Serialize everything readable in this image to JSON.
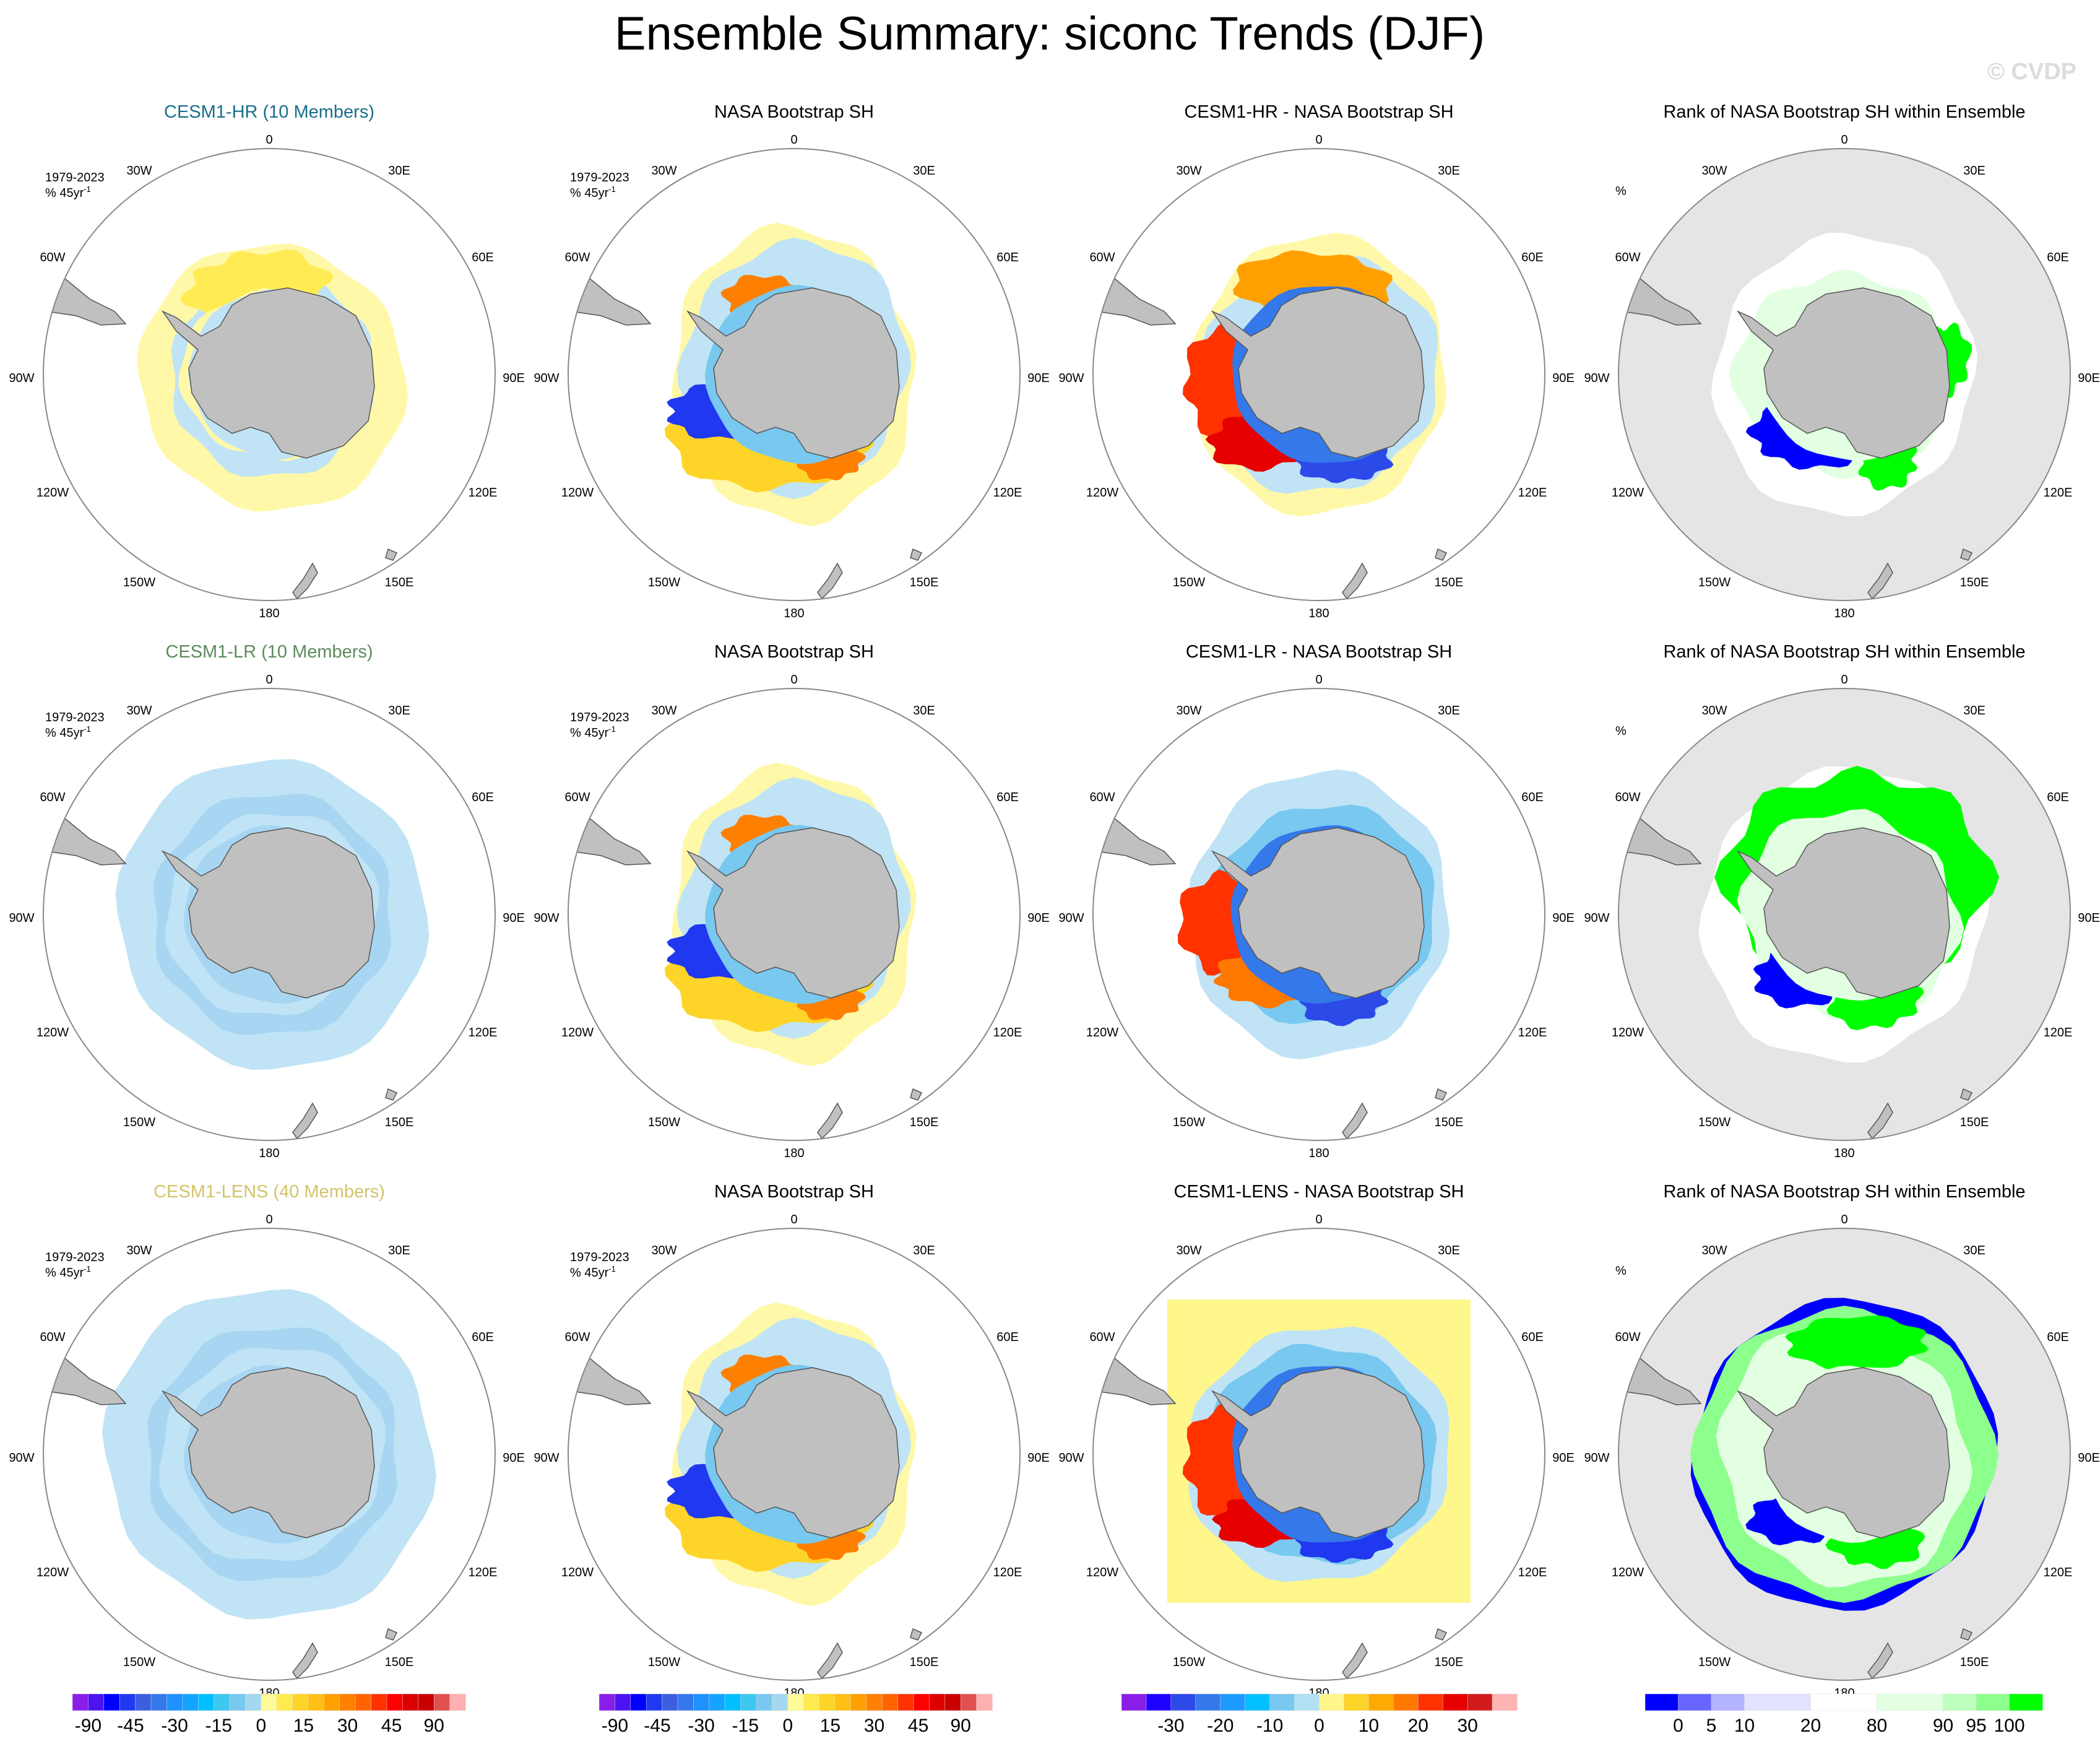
{
  "title": "Ensemble Summary: siconc Trends (DJF)",
  "watermark": "© CVDP",
  "period_label": "1979-2023",
  "units_label": "% 45yr",
  "units_exponent": "-1",
  "rank_units_label": "%",
  "lon_labels": [
    "0",
    "30E",
    "60E",
    "90E",
    "120E",
    "150E",
    "180",
    "150W",
    "120W",
    "90W",
    "60W",
    "30W"
  ],
  "rows": [
    {
      "panels": [
        {
          "title": "CESM1-HR (10 Members)",
          "title_color": "#1a6e8c",
          "kind": "hr",
          "show_units": true
        },
        {
          "title": "NASA Bootstrap SH",
          "title_color": "#000000",
          "kind": "obs",
          "show_units": true
        },
        {
          "title": "CESM1-HR - NASA Bootstrap SH",
          "title_color": "#000000",
          "kind": "diff1",
          "show_units": false
        },
        {
          "title": "Rank of NASA Bootstrap SH within Ensemble",
          "title_color": "#000000",
          "kind": "rank1",
          "show_units": false,
          "rank": true
        }
      ]
    },
    {
      "panels": [
        {
          "title": "CESM1-LR (10 Members)",
          "title_color": "#5e8c5e",
          "kind": "lr",
          "show_units": true
        },
        {
          "title": "NASA Bootstrap SH",
          "title_color": "#000000",
          "kind": "obs",
          "show_units": true
        },
        {
          "title": "CESM1-LR - NASA Bootstrap SH",
          "title_color": "#000000",
          "kind": "diff2",
          "show_units": false
        },
        {
          "title": "Rank of NASA Bootstrap SH within Ensemble",
          "title_color": "#000000",
          "kind": "rank2",
          "show_units": false,
          "rank": true
        }
      ]
    },
    {
      "panels": [
        {
          "title": "CESM1-LENS (40 Members)",
          "title_color": "#d2c46a",
          "kind": "lens",
          "show_units": true
        },
        {
          "title": "NASA Bootstrap SH",
          "title_color": "#000000",
          "kind": "obs",
          "show_units": true
        },
        {
          "title": "CESM1-LENS - NASA Bootstrap SH",
          "title_color": "#000000",
          "kind": "diff3",
          "show_units": false
        },
        {
          "title": "Rank of NASA Bootstrap SH within Ensemble",
          "title_color": "#000000",
          "kind": "rank3",
          "show_units": false,
          "rank": true
        }
      ]
    }
  ],
  "colorbars": [
    {
      "name": "trend-colorbar",
      "colors": [
        "#8a1de8",
        "#4b14f0",
        "#0000ff",
        "#2038f0",
        "#3c5ee0",
        "#3478ea",
        "#1e90ff",
        "#14a4ff",
        "#00bfff",
        "#3cc8f0",
        "#78c8f0",
        "#a4d8f0",
        "#fffa98",
        "#ffeb50",
        "#ffd428",
        "#ffbf14",
        "#ffa000",
        "#ff8000",
        "#ff6400",
        "#ff3200",
        "#ff0000",
        "#dc0000",
        "#c80000",
        "#e05050",
        "#ffb0b0"
      ],
      "labels": [
        "-90",
        "-45",
        "-30",
        "-15",
        "0",
        "15",
        "30",
        "45",
        "90"
      ],
      "label_pos": [
        1,
        3.7,
        6.5,
        9.3,
        12,
        14.7,
        17.5,
        20.3,
        23
      ],
      "units": 24
    },
    {
      "name": "obs-trend-colorbar",
      "colors": [
        "#8a1de8",
        "#4b14f0",
        "#0000ff",
        "#2038f0",
        "#3c5ee0",
        "#3478ea",
        "#1e90ff",
        "#14a4ff",
        "#00bfff",
        "#3cc8f0",
        "#78c8f0",
        "#a4d8f0",
        "#fffa98",
        "#ffeb50",
        "#ffd428",
        "#ffbf14",
        "#ffa000",
        "#ff8000",
        "#ff6400",
        "#ff3200",
        "#ff0000",
        "#dc0000",
        "#c80000",
        "#e05050",
        "#ffb0b0"
      ],
      "labels": [
        "-90",
        "-45",
        "-30",
        "-15",
        "0",
        "15",
        "30",
        "45",
        "90"
      ],
      "label_pos": [
        1,
        3.7,
        6.5,
        9.3,
        12,
        14.7,
        17.5,
        20.3,
        23
      ],
      "units": 24
    },
    {
      "name": "difference-colorbar",
      "colors": [
        "#8a1de8",
        "#1e00ff",
        "#2c4ae8",
        "#3478ea",
        "#1e9aff",
        "#00c0ff",
        "#78c8f0",
        "#b4e0f4",
        "#fff68c",
        "#ffd428",
        "#ffaa00",
        "#ff7800",
        "#ff3200",
        "#e60000",
        "#d21c1c",
        "#ffb4b4"
      ],
      "labels": [
        "-30",
        "-20",
        "-10",
        "0",
        "10",
        "20",
        "30"
      ],
      "label_pos": [
        2,
        4,
        6,
        8,
        10,
        12,
        14
      ],
      "units": 16
    },
    {
      "name": "rank-colorbar",
      "colors": [
        "#0000ff",
        "#6666ff",
        "#b3b3ff",
        "#e3e3ff",
        "#ffffff",
        "#e2ffe2",
        "#bdffbd",
        "#8cff8c",
        "#00ff00"
      ],
      "widths": [
        1,
        1,
        1,
        2,
        2,
        2,
        1,
        1,
        1
      ],
      "labels": [
        "0",
        "5",
        "10",
        "20",
        "80",
        "90",
        "95",
        "100"
      ],
      "label_pos": [
        1,
        2,
        3,
        5,
        7,
        9,
        10,
        11
      ],
      "units": 12
    }
  ]
}
